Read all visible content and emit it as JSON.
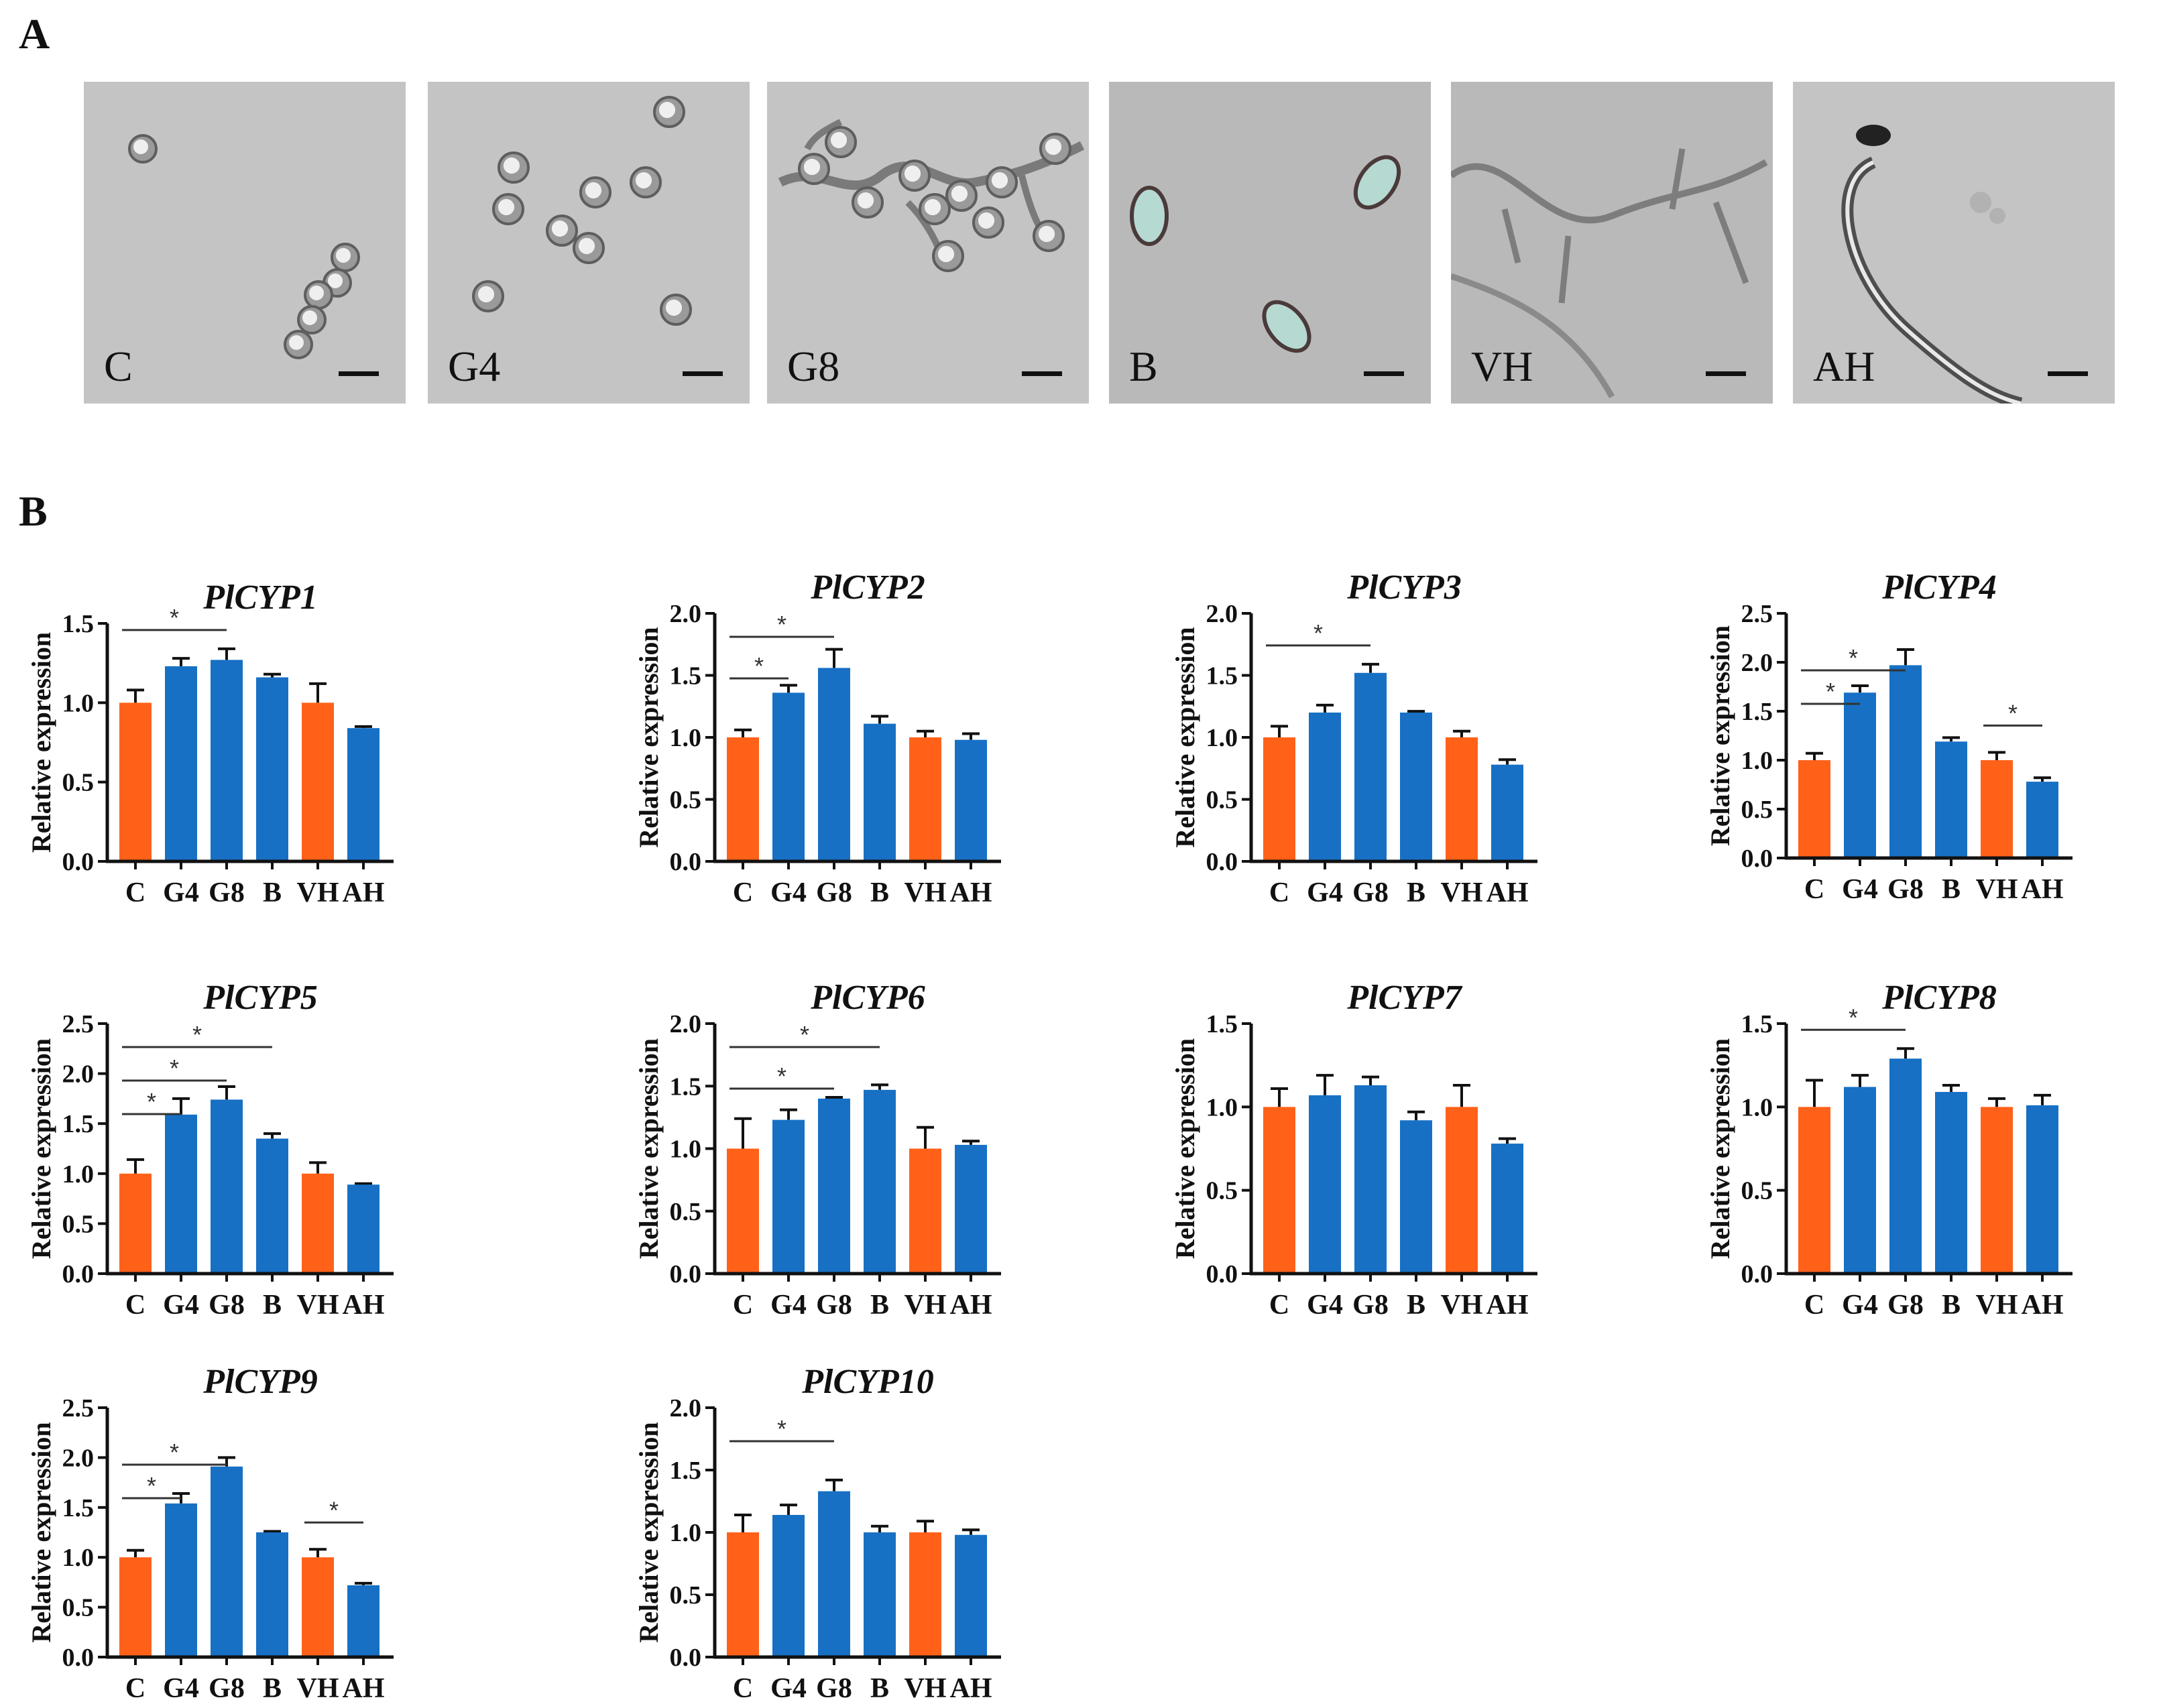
{
  "panel_labels": {
    "a": "A",
    "b": "B"
  },
  "micrographs": [
    {
      "label": "C",
      "kind": "spores"
    },
    {
      "label": "G4",
      "kind": "germ4"
    },
    {
      "label": "G8",
      "kind": "germ8"
    },
    {
      "label": "B",
      "kind": "blasto"
    },
    {
      "label": "VH",
      "kind": "hyphae"
    },
    {
      "label": "AH",
      "kind": "appressor"
    }
  ],
  "colors": {
    "control": "#ff6119",
    "treated": "#1770c4",
    "axis": "#111111",
    "sig": "#333333"
  },
  "chart_data": [
    {
      "type": "bar",
      "title": "PlCYP1",
      "ylabel": "Relative expression",
      "categories": [
        "C",
        "G4",
        "G8",
        "B",
        "VH",
        "AH"
      ],
      "values": [
        1.0,
        1.23,
        1.27,
        1.16,
        1.0,
        0.84
      ],
      "errors": [
        0.08,
        0.05,
        0.07,
        0.02,
        0.12,
        0.01
      ],
      "ylim": [
        0,
        1.5
      ],
      "yticks": [
        0.0,
        0.5,
        1.0,
        1.5
      ],
      "sig": [
        {
          "from": "C",
          "to": "G8",
          "level": 1,
          "mark": "*"
        }
      ]
    },
    {
      "type": "bar",
      "title": "PlCYP2",
      "ylabel": "Relative expression",
      "categories": [
        "C",
        "G4",
        "G8",
        "B",
        "VH",
        "AH"
      ],
      "values": [
        1.0,
        1.36,
        1.56,
        1.11,
        1.0,
        0.98
      ],
      "errors": [
        0.06,
        0.06,
        0.15,
        0.06,
        0.05,
        0.05
      ],
      "ylim": [
        0,
        2.0
      ],
      "yticks": [
        0.0,
        0.5,
        1.0,
        1.5,
        2.0
      ],
      "sig": [
        {
          "from": "C",
          "to": "G4",
          "level": 0,
          "mark": "*"
        },
        {
          "from": "C",
          "to": "G8",
          "level": 1,
          "mark": "*"
        }
      ]
    },
    {
      "type": "bar",
      "title": "PlCYP3",
      "ylabel": "Relative expression",
      "categories": [
        "C",
        "G4",
        "G8",
        "B",
        "VH",
        "AH"
      ],
      "values": [
        1.0,
        1.2,
        1.52,
        1.2,
        1.0,
        0.78
      ],
      "errors": [
        0.09,
        0.06,
        0.07,
        0.01,
        0.05,
        0.04
      ],
      "ylim": [
        0,
        2.0
      ],
      "yticks": [
        0.0,
        0.5,
        1.0,
        1.5,
        2.0
      ],
      "sig": [
        {
          "from": "C",
          "to": "G8",
          "level": 1,
          "mark": "*"
        }
      ]
    },
    {
      "type": "bar",
      "title": "PlCYP4",
      "ylabel": "Relative expression",
      "categories": [
        "C",
        "G4",
        "G8",
        "B",
        "VH",
        "AH"
      ],
      "values": [
        1.0,
        1.69,
        1.97,
        1.19,
        1.0,
        0.78
      ],
      "errors": [
        0.07,
        0.07,
        0.16,
        0.04,
        0.08,
        0.04
      ],
      "ylim": [
        0,
        2.5
      ],
      "yticks": [
        0.0,
        0.5,
        1.0,
        1.5,
        2.0,
        2.5
      ],
      "sig": [
        {
          "from": "C",
          "to": "G4",
          "level": 0,
          "mark": "*"
        },
        {
          "from": "C",
          "to": "G8",
          "level": 1,
          "mark": "*"
        },
        {
          "from": "VH",
          "to": "AH",
          "level": 0,
          "mark": "*"
        }
      ]
    },
    {
      "type": "bar",
      "title": "PlCYP5",
      "ylabel": "Relative expression",
      "categories": [
        "C",
        "G4",
        "G8",
        "B",
        "VH",
        "AH"
      ],
      "values": [
        1.0,
        1.59,
        1.74,
        1.35,
        1.0,
        0.89
      ],
      "errors": [
        0.14,
        0.16,
        0.13,
        0.05,
        0.11,
        0.01
      ],
      "ylim": [
        0,
        2.5
      ],
      "yticks": [
        0.0,
        0.5,
        1.0,
        1.5,
        2.0,
        2.5
      ],
      "sig": [
        {
          "from": "C",
          "to": "G4",
          "level": 0,
          "mark": "*"
        },
        {
          "from": "C",
          "to": "G8",
          "level": 1,
          "mark": "*"
        },
        {
          "from": "C",
          "to": "B",
          "level": 2,
          "mark": "*"
        }
      ]
    },
    {
      "type": "bar",
      "title": "PlCYP6",
      "ylabel": "Relative expression",
      "categories": [
        "C",
        "G4",
        "G8",
        "B",
        "VH",
        "AH"
      ],
      "values": [
        1.0,
        1.23,
        1.4,
        1.47,
        1.0,
        1.03
      ],
      "errors": [
        0.24,
        0.08,
        0.01,
        0.04,
        0.17,
        0.03
      ],
      "ylim": [
        0,
        2.0
      ],
      "yticks": [
        0.0,
        0.5,
        1.0,
        1.5,
        2.0
      ],
      "sig": [
        {
          "from": "C",
          "to": "G8",
          "level": 0,
          "mark": "*"
        },
        {
          "from": "C",
          "to": "B",
          "level": 1,
          "mark": "*"
        }
      ]
    },
    {
      "type": "bar",
      "title": "PlCYP7",
      "ylabel": "Relative expression",
      "categories": [
        "C",
        "G4",
        "G8",
        "B",
        "VH",
        "AH"
      ],
      "values": [
        1.0,
        1.07,
        1.13,
        0.92,
        1.0,
        0.78
      ],
      "errors": [
        0.11,
        0.12,
        0.05,
        0.05,
        0.13,
        0.03
      ],
      "ylim": [
        0,
        1.5
      ],
      "yticks": [
        0.0,
        0.5,
        1.0,
        1.5
      ],
      "sig": []
    },
    {
      "type": "bar",
      "title": "PlCYP8",
      "ylabel": "Relative expression",
      "categories": [
        "C",
        "G4",
        "G8",
        "B",
        "VH",
        "AH"
      ],
      "values": [
        1.0,
        1.12,
        1.29,
        1.09,
        1.0,
        1.01
      ],
      "errors": [
        0.16,
        0.07,
        0.06,
        0.04,
        0.05,
        0.06
      ],
      "ylim": [
        0,
        1.5
      ],
      "yticks": [
        0.0,
        0.5,
        1.0,
        1.5
      ],
      "sig": [
        {
          "from": "C",
          "to": "G8",
          "level": 1,
          "mark": "*"
        }
      ]
    },
    {
      "type": "bar",
      "title": "PlCYP9",
      "ylabel": "Relative expression",
      "categories": [
        "C",
        "G4",
        "G8",
        "B",
        "VH",
        "AH"
      ],
      "values": [
        1.0,
        1.54,
        1.91,
        1.25,
        1.0,
        0.72
      ],
      "errors": [
        0.07,
        0.1,
        0.09,
        0.01,
        0.08,
        0.02
      ],
      "ylim": [
        0,
        2.5
      ],
      "yticks": [
        0.0,
        0.5,
        1.0,
        1.5,
        2.0,
        2.5
      ],
      "sig": [
        {
          "from": "C",
          "to": "G4",
          "level": 0,
          "mark": "*"
        },
        {
          "from": "C",
          "to": "G8",
          "level": 1,
          "mark": "*"
        },
        {
          "from": "VH",
          "to": "AH",
          "level": 0,
          "mark": "*"
        }
      ]
    },
    {
      "type": "bar",
      "title": "PlCYP10",
      "ylabel": "Relative expression",
      "categories": [
        "C",
        "G4",
        "G8",
        "B",
        "VH",
        "AH"
      ],
      "values": [
        1.0,
        1.14,
        1.33,
        1.0,
        1.0,
        0.98
      ],
      "errors": [
        0.14,
        0.08,
        0.09,
        0.05,
        0.09,
        0.04
      ],
      "ylim": [
        0,
        2.0
      ],
      "yticks": [
        0.0,
        0.5,
        1.0,
        1.5,
        2.0
      ],
      "sig": [
        {
          "from": "C",
          "to": "G8",
          "level": 1,
          "mark": "*"
        }
      ]
    }
  ]
}
